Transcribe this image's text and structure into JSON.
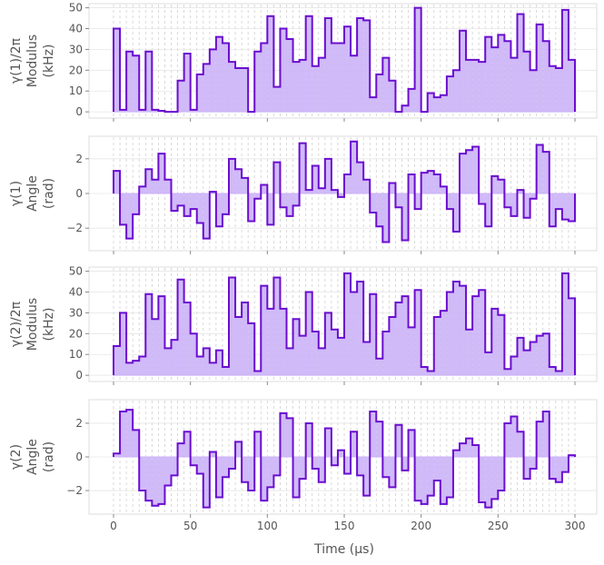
{
  "chart_data": [
    {
      "type": "step-area",
      "ylabel_lines": [
        "γ(1)/2π",
        "Modulus",
        "(kHz)"
      ],
      "ylim": [
        -3,
        52
      ],
      "yticks": [
        0,
        10,
        20,
        30,
        40,
        50
      ],
      "values": [
        40,
        1,
        29,
        27,
        1,
        29,
        1,
        0.5,
        0,
        0,
        15,
        28,
        1,
        18,
        23,
        30,
        36,
        33,
        24,
        21,
        21,
        0,
        29,
        33,
        46,
        12,
        40,
        35,
        24,
        25,
        46,
        22,
        26,
        45,
        33,
        33,
        41,
        27,
        45,
        44,
        7,
        18,
        26,
        15,
        0,
        3,
        11,
        50,
        0,
        9,
        7,
        8,
        17,
        20,
        39,
        25,
        25,
        24,
        36,
        31,
        37,
        34,
        26,
        47,
        29,
        20,
        42,
        34,
        22,
        21,
        49,
        25
      ]
    },
    {
      "type": "step-area",
      "ylabel_lines": [
        "γ(1)",
        "Angle",
        "(rad)"
      ],
      "ylim": [
        -3.3,
        3.3
      ],
      "yticks": [
        -2,
        0,
        2
      ],
      "values": [
        1.3,
        -1.8,
        -2.6,
        -1.2,
        0.4,
        1.4,
        0.8,
        2.3,
        0.8,
        -1.0,
        -0.7,
        -1.3,
        -0.9,
        -1.7,
        -2.6,
        0.1,
        -1.9,
        -1.2,
        2.0,
        1.4,
        0.9,
        -1.6,
        -0.3,
        0.5,
        -1.8,
        1.8,
        -0.8,
        -1.3,
        -0.7,
        2.9,
        0.2,
        1.6,
        0.3,
        2.0,
        0.2,
        -0.2,
        1.1,
        3.0,
        1.8,
        0.8,
        -1.1,
        -1.9,
        -2.8,
        0.6,
        -0.8,
        -2.7,
        1.1,
        -0.9,
        1.2,
        1.3,
        1.1,
        0.4,
        -0.9,
        -2.2,
        2.3,
        2.5,
        2.7,
        -0.6,
        -1.9,
        1.0,
        0.8,
        -0.8,
        -1.3,
        0.2,
        -1.4,
        -0.3,
        2.8,
        2.4,
        -1.9,
        -0.9,
        -1.5,
        -1.6
      ]
    },
    {
      "type": "step-area",
      "ylabel_lines": [
        "γ(2)/2π",
        "Modulus",
        "(kHz)"
      ],
      "ylim": [
        -3,
        52
      ],
      "yticks": [
        0,
        10,
        20,
        30,
        40,
        50
      ],
      "values": [
        14,
        30,
        6,
        7,
        9,
        39,
        27,
        38,
        13,
        17,
        46,
        35,
        20,
        9,
        13,
        6,
        12,
        4,
        47,
        28,
        35,
        25,
        2,
        43,
        32,
        47,
        32,
        13,
        27,
        19,
        40,
        21,
        13,
        30,
        22,
        18,
        49,
        40,
        45,
        16,
        39,
        8,
        21,
        28,
        35,
        38,
        23,
        41,
        4,
        2,
        28,
        31,
        40,
        45,
        43,
        22,
        38,
        41,
        11,
        32,
        29,
        3,
        9,
        18,
        12,
        16,
        19,
        20,
        4,
        2,
        49,
        37
      ]
    },
    {
      "type": "step-area",
      "ylabel_lines": [
        "γ(2)",
        "Angle",
        "(rad)"
      ],
      "ylim": [
        -3.4,
        3.4
      ],
      "yticks": [
        -2,
        0,
        2
      ],
      "values": [
        0.2,
        2.7,
        2.8,
        1.6,
        -2.0,
        -2.6,
        -2.9,
        -2.8,
        -1.7,
        -1.1,
        0.8,
        1.5,
        -0.5,
        -1.0,
        -3.0,
        0.3,
        -2.4,
        -1.2,
        -0.7,
        0.9,
        -1.5,
        -2.0,
        1.5,
        -2.6,
        -1.8,
        -1.1,
        2.6,
        2.3,
        -2.4,
        -1.3,
        2.0,
        -0.7,
        -1.5,
        1.7,
        -0.5,
        0.4,
        -1.0,
        1.5,
        -1.1,
        -2.3,
        2.7,
        2.1,
        -1.2,
        -1.8,
        1.9,
        -0.8,
        1.6,
        -2.6,
        -2.8,
        -2.3,
        -1.4,
        -2.8,
        -2.4,
        0.4,
        0.8,
        1.1,
        0.7,
        -2.7,
        -3.0,
        -2.5,
        -2.0,
        2.0,
        2.4,
        1.5,
        -1.3,
        -0.7,
        2.1,
        2.7,
        -1.3,
        -1.5,
        -0.9,
        0.1
      ]
    }
  ],
  "x_axis": {
    "label": "Time (μs)",
    "xlim": [
      0,
      300
    ],
    "ticks": [
      0,
      50,
      100,
      150,
      200,
      250,
      300
    ],
    "tick_labels": [
      "0",
      "50",
      "100",
      "150",
      "200",
      "250",
      "300"
    ]
  },
  "colors": {
    "line": "#6a0dcf",
    "fill": "#cbb2f7",
    "grid": "#d0d0d0",
    "axis_text": "#555555",
    "frame": "#dddddd"
  }
}
